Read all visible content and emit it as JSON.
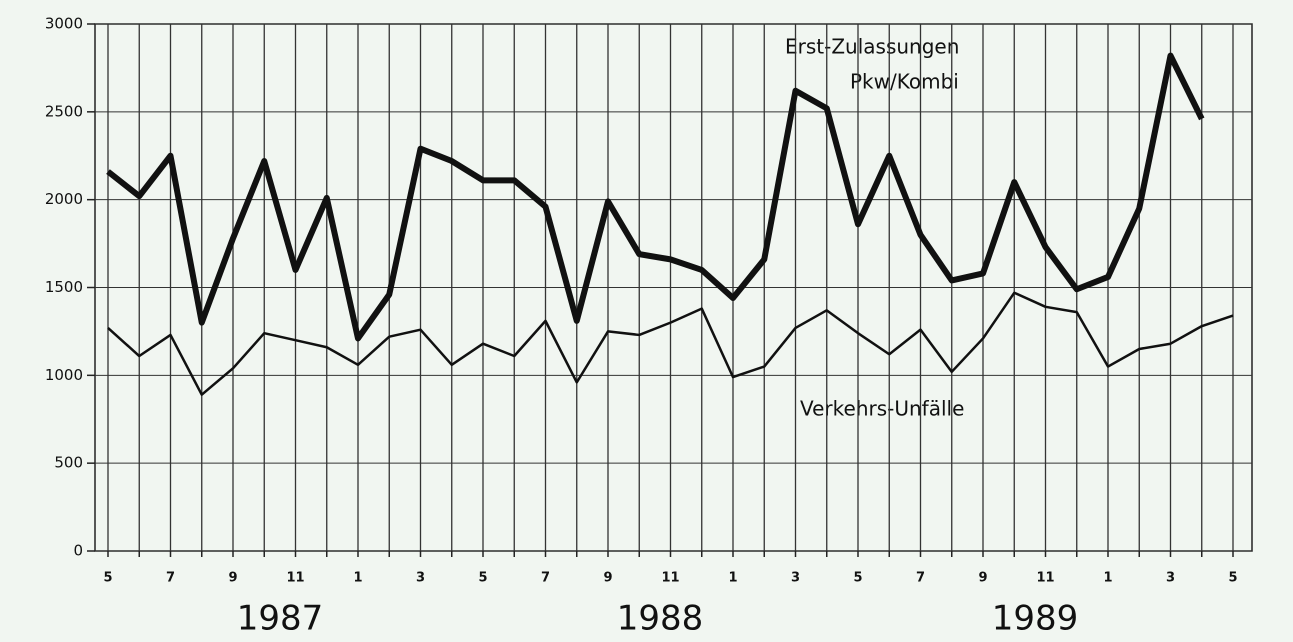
{
  "chart_data": {
    "type": "line",
    "categories": [
      "5",
      null,
      "7",
      null,
      "9",
      null,
      "11",
      null,
      "1",
      null,
      "3",
      null,
      "5",
      null,
      "7",
      null,
      "9",
      null,
      "11",
      null,
      "1",
      null,
      "3",
      null,
      "5",
      null,
      "7",
      null,
      "9",
      null,
      "11",
      null,
      "1",
      null,
      "3",
      null,
      "5"
    ],
    "year_labels": [
      "1987",
      "1988",
      "1989"
    ],
    "series": [
      {
        "name": "Erst-Zulassungen Pkw/Kombi",
        "color": "#111111",
        "width": 6,
        "values": [
          2160,
          2020,
          2250,
          1300,
          1780,
          2220,
          1600,
          2010,
          1210,
          1460,
          2290,
          2220,
          2110,
          2110,
          1960,
          1310,
          1990,
          1690,
          1660,
          1600,
          1440,
          1660,
          2620,
          2520,
          1860,
          2250,
          1800,
          1540,
          1580,
          2100,
          1730,
          1490,
          1560,
          1950,
          2820,
          2460,
          null
        ]
      },
      {
        "name": "Verkehrs-Unfälle",
        "color": "#111111",
        "width": 2.5,
        "values": [
          1270,
          1110,
          1230,
          890,
          1040,
          1240,
          1200,
          1160,
          1060,
          1220,
          1260,
          1060,
          1180,
          1110,
          1310,
          960,
          1250,
          1230,
          1300,
          1380,
          990,
          1050,
          1270,
          1370,
          1240,
          1120,
          1260,
          1020,
          1210,
          1470,
          1390,
          1360,
          1050,
          1150,
          1180,
          1280,
          1340
        ]
      }
    ],
    "annotations": [
      "Erst-Zulassungen",
      "Pkw/Kombi",
      "Verkehrs-Unfälle"
    ],
    "ylim": [
      0,
      3000
    ],
    "yticks": [
      0,
      500,
      1000,
      1500,
      2000,
      2500,
      3000
    ],
    "grid": true
  }
}
